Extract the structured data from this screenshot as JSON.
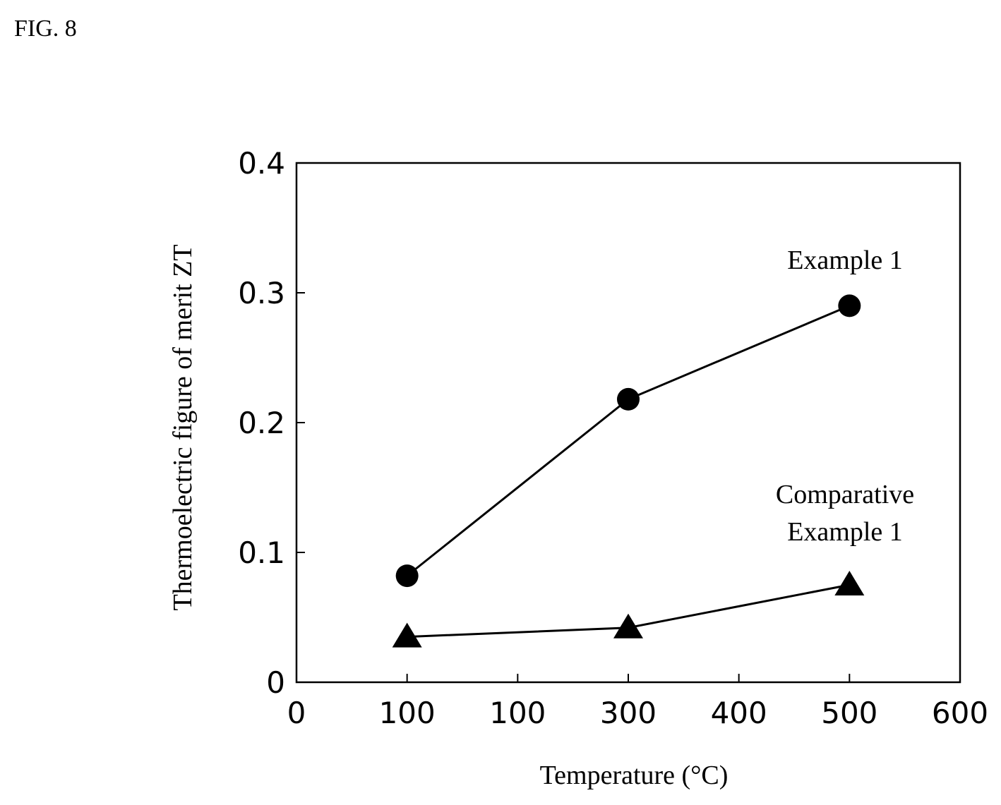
{
  "figure_label": "FIG. 8",
  "chart_data": {
    "type": "line",
    "title": "",
    "xlabel": "Temperature (°C)",
    "ylabel": "Thermoelectric figure of merit ZT",
    "xlim": [
      0,
      600
    ],
    "ylim": [
      0,
      0.4
    ],
    "x_tick_labels": [
      "0",
      "100",
      "100",
      "300",
      "400",
      "500",
      "600"
    ],
    "y_tick_labels": [
      "0",
      "0.1",
      "0.2",
      "0.3",
      "0.4"
    ],
    "grid": false,
    "series": [
      {
        "name": "Example 1",
        "marker": "circle",
        "x": [
          100,
          300,
          500
        ],
        "y": [
          0.082,
          0.218,
          0.29
        ]
      },
      {
        "name": "Comparative Example 1",
        "name_lines": [
          "Comparative",
          "Example 1"
        ],
        "marker": "triangle",
        "x": [
          100,
          300,
          500
        ],
        "y": [
          0.035,
          0.042,
          0.075
        ]
      }
    ]
  }
}
